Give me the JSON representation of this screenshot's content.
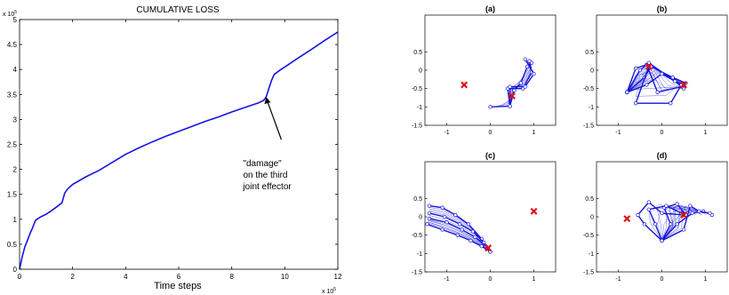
{
  "chart_data": [
    {
      "type": "line",
      "title": "CUMULATIVE LOSS",
      "xlabel": "Time steps",
      "ylabel": "",
      "x_multiplier": "x 10^5",
      "y_multiplier": "x 10^5",
      "xlim": [
        0,
        12
      ],
      "ylim": [
        0,
        5
      ],
      "xticks": [
        "0",
        "2",
        "4",
        "6",
        "8",
        "10",
        "12"
      ],
      "yticks": [
        "0",
        "0.5",
        "1",
        "1.5",
        "2",
        "2.5",
        "3",
        "3.5",
        "4",
        "4.5",
        "5"
      ],
      "grid": false,
      "series": [
        {
          "color": "#1414e6",
          "x": [
            0,
            0.1,
            0.2,
            0.3,
            0.4,
            0.5,
            0.6,
            0.8,
            1.0,
            1.2,
            1.4,
            1.6,
            1.7,
            1.8,
            2.0,
            2.5,
            3.0,
            3.5,
            4.0,
            4.5,
            5.0,
            5.5,
            6.0,
            6.5,
            7.0,
            7.5,
            8.0,
            8.5,
            9.0,
            9.2,
            9.3,
            9.4,
            9.5,
            9.6,
            9.8,
            10.0,
            10.5,
            11.0,
            11.5,
            12.0
          ],
          "y": [
            0,
            0.25,
            0.45,
            0.58,
            0.72,
            0.84,
            0.98,
            1.05,
            1.1,
            1.17,
            1.25,
            1.33,
            1.52,
            1.6,
            1.7,
            1.85,
            1.98,
            2.14,
            2.3,
            2.43,
            2.55,
            2.66,
            2.76,
            2.86,
            2.96,
            3.05,
            3.15,
            3.24,
            3.33,
            3.38,
            3.45,
            3.62,
            3.78,
            3.9,
            3.98,
            4.05,
            4.23,
            4.4,
            4.58,
            4.75
          ]
        }
      ],
      "annotation": {
        "lines": [
          "\"damage\"",
          "on the third",
          "joint effector"
        ],
        "x": 9.3,
        "y": 3.45
      }
    },
    {
      "type": "scatter",
      "title": "(a)",
      "xlim": [
        -1.5,
        1.5
      ],
      "ylim": [
        -1.5,
        1.5
      ],
      "xticks": [
        "-1",
        "0",
        "1"
      ],
      "yticks": [
        "0.5",
        "0",
        "-0.5",
        "-1",
        "-1.5"
      ],
      "targets": [
        [
          -0.6,
          -0.4
        ],
        [
          0.5,
          -0.7
        ]
      ],
      "arm_configs": [
        [
          [
            0,
            -1
          ],
          [
            0.45,
            -0.98
          ],
          [
            0.4,
            -0.5
          ],
          [
            0.75,
            -0.5
          ],
          [
            0.95,
            -0.05
          ],
          [
            0.9,
            0.25
          ]
        ],
        [
          [
            0.45,
            -0.98
          ],
          [
            0.55,
            -0.55
          ],
          [
            0.7,
            -0.35
          ],
          [
            0.85,
            0.1
          ],
          [
            0.95,
            0.2
          ]
        ],
        [
          [
            0.45,
            -0.98
          ],
          [
            0.45,
            -0.45
          ],
          [
            0.8,
            -0.45
          ],
          [
            1.0,
            -0.1
          ],
          [
            0.8,
            0.3
          ]
        ]
      ]
    },
    {
      "type": "scatter",
      "title": "(b)",
      "xlim": [
        -1.5,
        1.5
      ],
      "ylim": [
        -1.5,
        1.5
      ],
      "xticks": [
        "-1",
        "0",
        "1"
      ],
      "yticks": [
        "0.5",
        "0",
        "-0.5",
        "-1",
        "-1.5"
      ],
      "targets": [
        [
          -0.3,
          0.1
        ],
        [
          0.5,
          -0.4
        ]
      ],
      "arm_configs": [
        [
          [
            -0.8,
            -0.6
          ],
          [
            -0.5,
            0.0
          ],
          [
            -0.3,
            0.2
          ],
          [
            0.3,
            -0.3
          ],
          [
            0.5,
            -0.4
          ]
        ],
        [
          [
            -0.8,
            -0.6
          ],
          [
            -0.4,
            -0.2
          ],
          [
            -0.25,
            0.1
          ],
          [
            0.25,
            -0.2
          ],
          [
            0.55,
            -0.35
          ]
        ],
        [
          [
            -0.8,
            -0.6
          ],
          [
            -0.35,
            -0.4
          ],
          [
            0.0,
            -0.1
          ],
          [
            0.3,
            -0.3
          ],
          [
            0.5,
            -0.5
          ]
        ],
        [
          [
            -0.8,
            -0.6
          ],
          [
            -0.6,
            0.05
          ],
          [
            -0.35,
            0.15
          ],
          [
            -0.1,
            -0.6
          ],
          [
            0.45,
            -0.45
          ]
        ],
        [
          [
            -0.3,
            0.1
          ],
          [
            -0.6,
            -0.9
          ],
          [
            0.2,
            -0.9
          ],
          [
            0.45,
            -0.4
          ]
        ]
      ]
    },
    {
      "type": "scatter",
      "title": "(c)",
      "xlim": [
        -1.5,
        1.5
      ],
      "ylim": [
        -1.5,
        1.5
      ],
      "xticks": [
        "-1",
        "0",
        "1"
      ],
      "yticks": [
        "0.5",
        "0",
        "-0.5",
        "-1",
        "-1.5"
      ],
      "targets": [
        [
          1.0,
          0.15
        ],
        [
          -0.05,
          -0.85
        ]
      ],
      "arm_configs": [
        [
          [
            -1.4,
            0.3
          ],
          [
            -1.1,
            0.25
          ],
          [
            -0.8,
            0.05
          ],
          [
            -0.5,
            -0.2
          ],
          [
            -0.2,
            -0.6
          ],
          [
            0,
            -0.95
          ]
        ],
        [
          [
            -1.4,
            0.1
          ],
          [
            -1.05,
            0.0
          ],
          [
            -0.7,
            -0.2
          ],
          [
            -0.4,
            -0.4
          ],
          [
            -0.15,
            -0.7
          ],
          [
            0,
            -0.95
          ]
        ],
        [
          [
            -1.45,
            -0.2
          ],
          [
            -1.1,
            -0.35
          ],
          [
            -0.75,
            -0.5
          ],
          [
            -0.45,
            -0.65
          ],
          [
            -0.2,
            -0.8
          ],
          [
            0,
            -0.95
          ]
        ],
        [
          [
            -1.4,
            -0.05
          ],
          [
            -1.0,
            -0.15
          ],
          [
            -0.65,
            -0.35
          ],
          [
            -0.35,
            -0.55
          ],
          [
            -0.1,
            -0.8
          ],
          [
            0,
            -0.95
          ]
        ]
      ]
    },
    {
      "type": "scatter",
      "title": "(d)",
      "xlim": [
        -1.5,
        1.5
      ],
      "ylim": [
        -1.5,
        1.5
      ],
      "xticks": [
        "-1",
        "0",
        "1"
      ],
      "yticks": [
        "0.5",
        "0",
        "-0.5",
        "-1",
        "-1.5"
      ],
      "targets": [
        [
          -0.8,
          -0.05
        ],
        [
          0.5,
          0.05
        ]
      ],
      "arm_configs": [
        [
          [
            0,
            -0.65
          ],
          [
            -0.4,
            -0.2
          ],
          [
            -0.55,
            0.05
          ],
          [
            -0.3,
            0.4
          ],
          [
            0.0,
            0.1
          ],
          [
            0.5,
            0.05
          ]
        ],
        [
          [
            0,
            -0.65
          ],
          [
            0.35,
            -0.2
          ],
          [
            0.7,
            0.1
          ],
          [
            0.95,
            0.15
          ],
          [
            1.15,
            0.05
          ]
        ],
        [
          [
            0,
            -0.65
          ],
          [
            0.2,
            -0.2
          ],
          [
            0.05,
            0.25
          ],
          [
            0.35,
            0.35
          ],
          [
            0.55,
            0.05
          ]
        ],
        [
          [
            0,
            -0.65
          ],
          [
            0.5,
            -0.35
          ],
          [
            0.65,
            0.3
          ],
          [
            0.85,
            0.15
          ],
          [
            1.1,
            0.1
          ]
        ],
        [
          [
            0,
            -0.65
          ],
          [
            -0.15,
            -0.2
          ],
          [
            -0.3,
            0.2
          ],
          [
            0.1,
            0.3
          ],
          [
            0.45,
            0.1
          ]
        ]
      ]
    }
  ]
}
